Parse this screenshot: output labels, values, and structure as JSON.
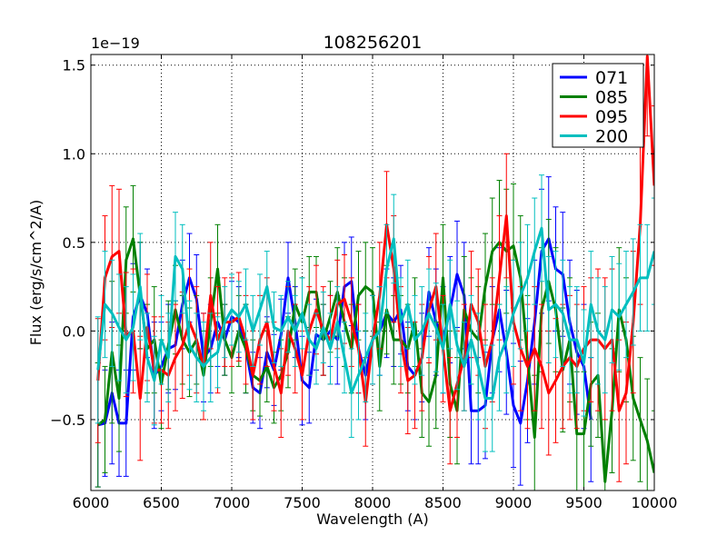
{
  "chart_data": {
    "type": "line",
    "title": "108256201",
    "xlabel": "Wavelength (A)",
    "ylabel": "Flux (erg/s/cm^2/A)",
    "offset_text": "1e−19",
    "xlim": [
      6000,
      10000
    ],
    "ylim": [
      -0.9,
      1.56
    ],
    "x_ticks": [
      6000,
      6500,
      7000,
      7500,
      8000,
      8500,
      9000,
      9500,
      10000
    ],
    "x_tick_labels": [
      "6000",
      "6500",
      "7000",
      "7500",
      "8000",
      "8500",
      "9000",
      "9500",
      "10000"
    ],
    "y_ticks": [
      -0.5,
      0.0,
      0.5,
      1.0,
      1.5
    ],
    "y_tick_labels": [
      "−0.5",
      "0.0",
      "0.5",
      "1.0",
      "1.5"
    ],
    "grid": true,
    "legend_position": "top-right",
    "series": [
      {
        "name": "071",
        "color": "#0000ff",
        "x": [
          6050,
          6100,
          6150,
          6200,
          6250,
          6300,
          6350,
          6400,
          6450,
          6500,
          6550,
          6600,
          6650,
          6700,
          6750,
          6800,
          6850,
          6900,
          6950,
          7000,
          7050,
          7100,
          7150,
          7200,
          7250,
          7300,
          7350,
          7400,
          7450,
          7500,
          7550,
          7600,
          7650,
          7700,
          7750,
          7800,
          7850,
          7900,
          7950,
          8000,
          8050,
          8100,
          8150,
          8200,
          8250,
          8300,
          8350,
          8400,
          8450,
          8500,
          8550,
          8600,
          8650,
          8700,
          8750,
          8800,
          8850,
          8900,
          8950,
          9000,
          9050,
          9100,
          9150,
          9200,
          9250,
          9300,
          9350,
          9400,
          9450,
          9500,
          9550
        ],
        "y": [
          -0.53,
          -0.52,
          -0.35,
          -0.52,
          -0.52,
          0.08,
          0.2,
          0.1,
          -0.25,
          -0.2,
          -0.1,
          -0.08,
          0.15,
          0.3,
          0.18,
          -0.15,
          -0.1,
          0.05,
          -0.05,
          0.08,
          0.05,
          -0.1,
          -0.32,
          -0.35,
          -0.12,
          -0.22,
          -0.02,
          0.3,
          0.05,
          -0.28,
          -0.32,
          -0.02,
          -0.05,
          0.0,
          -0.05,
          0.25,
          0.28,
          -0.1,
          -0.25,
          -0.05,
          0.0,
          0.1,
          0.05,
          0.12,
          -0.2,
          -0.25,
          -0.15,
          0.22,
          0.05,
          -0.05,
          0.12,
          0.32,
          0.2,
          -0.45,
          -0.45,
          -0.42,
          -0.05,
          0.12,
          -0.12,
          -0.42,
          -0.52,
          -0.28,
          0.05,
          0.45,
          0.52,
          0.35,
          0.32,
          0.05,
          -0.12,
          -0.2,
          -0.5
        ],
        "err": [
          0.35,
          0.3,
          0.4,
          0.3,
          0.3,
          0.3,
          0.3,
          0.25,
          0.3,
          0.25,
          0.25,
          0.25,
          0.25,
          0.25,
          0.25,
          0.25,
          0.25,
          0.25,
          0.2,
          0.2,
          0.2,
          0.25,
          0.2,
          0.2,
          0.2,
          0.2,
          0.2,
          0.2,
          0.2,
          0.25,
          0.2,
          0.2,
          0.2,
          0.2,
          0.25,
          0.25,
          0.25,
          0.25,
          0.25,
          0.25,
          0.25,
          0.25,
          0.25,
          0.25,
          0.25,
          0.25,
          0.25,
          0.25,
          0.3,
          0.3,
          0.3,
          0.3,
          0.3,
          0.3,
          0.3,
          0.3,
          0.3,
          0.35,
          0.35,
          0.35,
          0.35,
          0.35,
          0.35,
          0.35,
          0.35,
          0.35,
          0.35,
          0.35,
          0.35,
          0.35,
          0.35
        ]
      },
      {
        "name": "085",
        "color": "#008000",
        "x": [
          6050,
          6100,
          6150,
          6200,
          6250,
          6300,
          6350,
          6400,
          6450,
          6500,
          6550,
          6600,
          6650,
          6700,
          6750,
          6800,
          6850,
          6900,
          6950,
          7000,
          7050,
          7100,
          7150,
          7200,
          7250,
          7300,
          7350,
          7400,
          7450,
          7500,
          7550,
          7600,
          7650,
          7700,
          7750,
          7800,
          7850,
          7900,
          7950,
          8000,
          8050,
          8100,
          8150,
          8200,
          8250,
          8300,
          8350,
          8400,
          8450,
          8500,
          8550,
          8600,
          8650,
          8700,
          8750,
          8800,
          8850,
          8900,
          8950,
          9000,
          9050,
          9100,
          9150,
          9200,
          9250,
          9300,
          9350,
          9400,
          9450,
          9500,
          9550,
          9600,
          9650,
          9700,
          9750,
          9800,
          9850,
          9900,
          9950,
          10000
        ],
        "y": [
          -0.53,
          -0.5,
          -0.12,
          -0.38,
          0.4,
          0.52,
          0.2,
          -0.1,
          -0.05,
          -0.3,
          -0.08,
          0.12,
          -0.05,
          -0.12,
          -0.05,
          -0.25,
          0.05,
          0.35,
          -0.05,
          -0.15,
          0.0,
          -0.1,
          -0.25,
          -0.28,
          -0.2,
          -0.32,
          -0.25,
          -0.12,
          0.15,
          0.05,
          0.22,
          0.22,
          -0.05,
          0.08,
          0.22,
          0.05,
          -0.1,
          0.2,
          0.25,
          0.22,
          -0.2,
          0.12,
          -0.05,
          -0.05,
          -0.1,
          0.05,
          -0.35,
          -0.4,
          -0.25,
          0.3,
          -0.3,
          -0.45,
          0.12,
          0.0,
          -0.05,
          0.25,
          0.45,
          0.5,
          0.45,
          0.48,
          0.3,
          -0.15,
          -0.6,
          0.12,
          0.28,
          0.12,
          -0.22,
          -0.05,
          -0.58,
          -0.58,
          -0.3,
          -0.25,
          -0.85,
          -0.45,
          0.12,
          -0.05,
          -0.38,
          -0.5,
          -0.62,
          -0.8
        ],
        "err": [
          0.35,
          0.3,
          0.4,
          0.3,
          0.3,
          0.3,
          0.3,
          0.25,
          0.3,
          0.25,
          0.25,
          0.25,
          0.25,
          0.25,
          0.25,
          0.25,
          0.25,
          0.25,
          0.2,
          0.2,
          0.2,
          0.25,
          0.2,
          0.2,
          0.2,
          0.2,
          0.2,
          0.2,
          0.2,
          0.25,
          0.2,
          0.2,
          0.2,
          0.2,
          0.25,
          0.25,
          0.25,
          0.25,
          0.25,
          0.25,
          0.25,
          0.25,
          0.25,
          0.25,
          0.25,
          0.25,
          0.25,
          0.25,
          0.3,
          0.3,
          0.3,
          0.3,
          0.3,
          0.3,
          0.3,
          0.3,
          0.3,
          0.35,
          0.35,
          0.35,
          0.35,
          0.35,
          0.35,
          0.35,
          0.35,
          0.35,
          0.35,
          0.35,
          0.35,
          0.35,
          0.35,
          0.35,
          0.35,
          0.35,
          0.35,
          0.35,
          0.35,
          0.35,
          0.35,
          0.35
        ]
      },
      {
        "name": "095",
        "color": "#ff0000",
        "x": [
          6050,
          6100,
          6150,
          6200,
          6250,
          6300,
          6350,
          6400,
          6450,
          6500,
          6550,
          6600,
          6650,
          6700,
          6750,
          6800,
          6850,
          6900,
          6950,
          7000,
          7050,
          7100,
          7150,
          7200,
          7250,
          7300,
          7350,
          7400,
          7450,
          7500,
          7550,
          7600,
          7650,
          7700,
          7750,
          7800,
          7850,
          7900,
          7950,
          8000,
          8050,
          8100,
          8150,
          8200,
          8250,
          8300,
          8350,
          8400,
          8450,
          8500,
          8550,
          8600,
          8650,
          8700,
          8750,
          8800,
          8850,
          8900,
          8950,
          9000,
          9050,
          9100,
          9150,
          9200,
          9250,
          9300,
          9350,
          9400,
          9450,
          9500,
          9550,
          9600,
          9650,
          9700,
          9750,
          9800,
          9850,
          9900,
          9950,
          10000
        ],
        "y": [
          -0.28,
          0.3,
          0.42,
          0.45,
          -0.02,
          0.0,
          -0.38,
          0.02,
          -0.22,
          -0.22,
          -0.25,
          -0.15,
          -0.08,
          0.05,
          -0.05,
          -0.2,
          0.2,
          -0.05,
          0.05,
          0.05,
          0.08,
          -0.05,
          -0.25,
          -0.05,
          0.05,
          -0.2,
          -0.35,
          0.0,
          -0.1,
          -0.25,
          0.0,
          0.12,
          0.0,
          -0.05,
          0.15,
          0.18,
          0.05,
          -0.1,
          -0.4,
          -0.05,
          0.2,
          0.6,
          0.35,
          -0.05,
          -0.28,
          -0.25,
          -0.15,
          0.12,
          0.25,
          -0.1,
          -0.45,
          -0.3,
          -0.15,
          0.15,
          0.05,
          -0.2,
          -0.05,
          0.3,
          0.65,
          0.05,
          -0.1,
          -0.2,
          -0.1,
          -0.2,
          -0.35,
          -0.28,
          -0.2,
          -0.15,
          -0.2,
          -0.1,
          -0.05,
          -0.05,
          -0.1,
          -0.05,
          -0.45,
          -0.35,
          0.05,
          0.6,
          1.55,
          0.82
        ],
        "err": [
          0.35,
          0.35,
          0.4,
          0.35,
          0.35,
          0.35,
          0.35,
          0.3,
          0.3,
          0.3,
          0.3,
          0.3,
          0.3,
          0.3,
          0.3,
          0.3,
          0.3,
          0.3,
          0.25,
          0.25,
          0.25,
          0.25,
          0.25,
          0.25,
          0.25,
          0.25,
          0.25,
          0.25,
          0.25,
          0.25,
          0.25,
          0.25,
          0.25,
          0.25,
          0.25,
          0.25,
          0.25,
          0.25,
          0.25,
          0.25,
          0.3,
          0.3,
          0.3,
          0.3,
          0.3,
          0.3,
          0.3,
          0.3,
          0.3,
          0.3,
          0.3,
          0.3,
          0.3,
          0.3,
          0.3,
          0.35,
          0.35,
          0.35,
          0.35,
          0.35,
          0.35,
          0.35,
          0.35,
          0.35,
          0.35,
          0.35,
          0.35,
          0.35,
          0.35,
          0.35,
          0.35,
          0.4,
          0.4,
          0.4,
          0.4,
          0.4,
          0.4,
          0.45,
          0.45,
          0.45
        ]
      },
      {
        "name": "200",
        "color": "#00bfbf",
        "x": [
          6050,
          6100,
          6150,
          6200,
          6250,
          6300,
          6350,
          6400,
          6450,
          6500,
          6550,
          6600,
          6650,
          6700,
          6750,
          6800,
          6850,
          6900,
          6950,
          7000,
          7050,
          7100,
          7150,
          7200,
          7250,
          7300,
          7350,
          7400,
          7450,
          7500,
          7550,
          7600,
          7650,
          7700,
          7750,
          7800,
          7850,
          7900,
          7950,
          8000,
          8050,
          8100,
          8150,
          8200,
          8250,
          8300,
          8350,
          8400,
          8450,
          8500,
          8550,
          8600,
          8650,
          8700,
          8750,
          8800,
          8850,
          8900,
          8950,
          9000,
          9050,
          9100,
          9150,
          9200,
          9250,
          9300,
          9350,
          9400,
          9450,
          9500,
          9550,
          9600,
          9650,
          9700,
          9750,
          9800,
          9850,
          9900,
          9950,
          10000
        ],
        "y": [
          -0.22,
          0.15,
          0.1,
          0.02,
          -0.05,
          0.02,
          0.25,
          -0.15,
          -0.28,
          -0.05,
          -0.15,
          0.42,
          0.35,
          -0.08,
          -0.15,
          -0.2,
          -0.15,
          -0.12,
          0.05,
          0.12,
          0.08,
          0.15,
          0.0,
          0.12,
          0.25,
          0.02,
          0.0,
          0.08,
          0.0,
          0.1,
          -0.05,
          -0.1,
          0.02,
          -0.1,
          0.05,
          -0.15,
          -0.35,
          -0.25,
          -0.15,
          -0.05,
          0.0,
          0.35,
          0.52,
          0.05,
          0.15,
          -0.05,
          0.0,
          0.1,
          0.02,
          -0.1,
          0.15,
          -0.08,
          -0.2,
          -0.05,
          -0.2,
          -0.38,
          -0.38,
          -0.15,
          -0.05,
          0.1,
          0.2,
          0.3,
          0.45,
          0.58,
          0.12,
          0.15,
          0.1,
          -0.05,
          -0.05,
          -0.18,
          0.15,
          0.0,
          -0.05,
          0.12,
          0.08,
          0.15,
          0.22,
          0.3,
          0.3,
          0.45
        ],
        "err": [
          0.3,
          0.3,
          0.3,
          0.3,
          0.3,
          0.3,
          0.3,
          0.25,
          0.25,
          0.25,
          0.25,
          0.25,
          0.25,
          0.25,
          0.25,
          0.25,
          0.25,
          0.2,
          0.2,
          0.2,
          0.2,
          0.2,
          0.2,
          0.2,
          0.2,
          0.2,
          0.2,
          0.2,
          0.2,
          0.2,
          0.2,
          0.2,
          0.2,
          0.2,
          0.2,
          0.2,
          0.25,
          0.25,
          0.25,
          0.25,
          0.25,
          0.25,
          0.25,
          0.25,
          0.25,
          0.25,
          0.25,
          0.25,
          0.25,
          0.25,
          0.25,
          0.25,
          0.25,
          0.25,
          0.3,
          0.3,
          0.3,
          0.3,
          0.3,
          0.3,
          0.3,
          0.3,
          0.3,
          0.3,
          0.3,
          0.3,
          0.3,
          0.3,
          0.3,
          0.3,
          0.3,
          0.3,
          0.3,
          0.3,
          0.3,
          0.3,
          0.3,
          0.3,
          0.3,
          0.3
        ]
      }
    ]
  }
}
